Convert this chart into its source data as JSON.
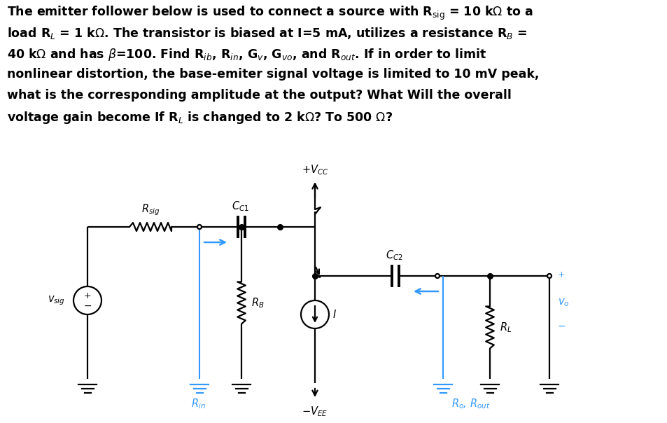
{
  "bg_color": "#ffffff",
  "text_color": "#000000",
  "blue_color": "#3399ff",
  "line_color": "#000000",
  "title_lines": [
    "The emitter follower below is used to connect a source with R$_\\mathbf{sig}$ = 10 kΩ to a",
    "load R$_L$ = 1 kΩ. The transistor is biased at I=5 mA, utilizes a resistance R$_B$ =",
    "40 kΩ and has β=100. Find R$_{ib}$, R$_{in}$, G$_v$, G$_{vo}$, and R$_{out}$. If in order to limit",
    "nonlinear distortion, the base-emiter signal voltage is limited to 10 mV peak,",
    "what is the corresponding amplitude at the output? What Will the overall",
    "voltage gain become If R$_L$ is changed to 2 kΩ? To 500 Ω?"
  ],
  "font_size_text": 12.5,
  "font_size_labels": 10.5,
  "font_size_small": 9,
  "figw": 9.54,
  "figh": 6.04,
  "dpi": 100
}
